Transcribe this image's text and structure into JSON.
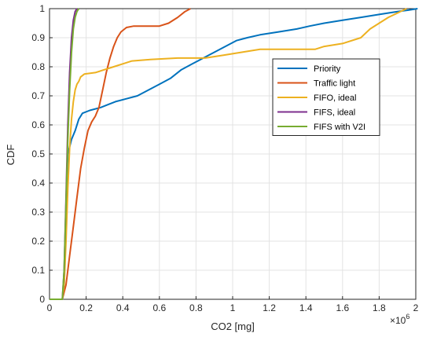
{
  "chart_data": {
    "type": "line",
    "title": "",
    "xlabel": "CO2 [mg]",
    "ylabel": "CDF",
    "x_multiplier_label": "×10",
    "x_multiplier_exponent": "6",
    "xlim": [
      0,
      2000000
    ],
    "ylim": [
      0,
      1
    ],
    "x_ticks": [
      0,
      200000,
      400000,
      600000,
      800000,
      1000000,
      1200000,
      1400000,
      1600000,
      1800000,
      2000000
    ],
    "x_tick_labels": [
      "0",
      "0.2",
      "0.4",
      "0.6",
      "0.8",
      "1",
      "1.2",
      "1.4",
      "1.6",
      "1.8",
      "2"
    ],
    "y_ticks": [
      0,
      0.1,
      0.2,
      0.3,
      0.4,
      0.5,
      0.6,
      0.7,
      0.8,
      0.9,
      1
    ],
    "y_tick_labels": [
      "0",
      "0.1",
      "0.2",
      "0.3",
      "0.4",
      "0.5",
      "0.6",
      "0.7",
      "0.8",
      "0.9",
      "1"
    ],
    "grid": true,
    "legend_position": "right-middle",
    "series": [
      {
        "name": "Priority",
        "color": "#0072BD",
        "points": [
          [
            0,
            0
          ],
          [
            70000,
            0
          ],
          [
            80000,
            0.05
          ],
          [
            90000,
            0.3
          ],
          [
            100000,
            0.5
          ],
          [
            120000,
            0.55
          ],
          [
            140000,
            0.58
          ],
          [
            160000,
            0.62
          ],
          [
            180000,
            0.64
          ],
          [
            220000,
            0.65
          ],
          [
            280000,
            0.66
          ],
          [
            320000,
            0.67
          ],
          [
            360000,
            0.68
          ],
          [
            420000,
            0.69
          ],
          [
            480000,
            0.7
          ],
          [
            540000,
            0.72
          ],
          [
            600000,
            0.74
          ],
          [
            660000,
            0.76
          ],
          [
            720000,
            0.79
          ],
          [
            780000,
            0.81
          ],
          [
            840000,
            0.83
          ],
          [
            900000,
            0.85
          ],
          [
            960000,
            0.87
          ],
          [
            1020000,
            0.89
          ],
          [
            1080000,
            0.9
          ],
          [
            1150000,
            0.91
          ],
          [
            1250000,
            0.92
          ],
          [
            1350000,
            0.93
          ],
          [
            1420000,
            0.94
          ],
          [
            1500000,
            0.95
          ],
          [
            1600000,
            0.96
          ],
          [
            1700000,
            0.97
          ],
          [
            1800000,
            0.98
          ],
          [
            1900000,
            0.99
          ],
          [
            1960000,
            0.995
          ],
          [
            2010000,
            1.0
          ]
        ]
      },
      {
        "name": "Traffic light",
        "color": "#D95319",
        "points": [
          [
            0,
            0
          ],
          [
            70000,
            0
          ],
          [
            90000,
            0.05
          ],
          [
            110000,
            0.15
          ],
          [
            130000,
            0.25
          ],
          [
            150000,
            0.35
          ],
          [
            170000,
            0.45
          ],
          [
            190000,
            0.52
          ],
          [
            210000,
            0.58
          ],
          [
            230000,
            0.61
          ],
          [
            250000,
            0.63
          ],
          [
            270000,
            0.66
          ],
          [
            290000,
            0.72
          ],
          [
            310000,
            0.78
          ],
          [
            330000,
            0.83
          ],
          [
            350000,
            0.87
          ],
          [
            370000,
            0.9
          ],
          [
            390000,
            0.92
          ],
          [
            420000,
            0.935
          ],
          [
            460000,
            0.94
          ],
          [
            520000,
            0.94
          ],
          [
            600000,
            0.94
          ],
          [
            650000,
            0.95
          ],
          [
            700000,
            0.97
          ],
          [
            740000,
            0.99
          ],
          [
            770000,
            1.0
          ]
        ]
      },
      {
        "name": "FIFO, ideal",
        "color": "#EDB120",
        "points": [
          [
            0,
            0
          ],
          [
            70000,
            0
          ],
          [
            80000,
            0.05
          ],
          [
            90000,
            0.2
          ],
          [
            100000,
            0.38
          ],
          [
            110000,
            0.52
          ],
          [
            120000,
            0.62
          ],
          [
            130000,
            0.68
          ],
          [
            140000,
            0.72
          ],
          [
            150000,
            0.74
          ],
          [
            160000,
            0.75
          ],
          [
            170000,
            0.765
          ],
          [
            190000,
            0.775
          ],
          [
            250000,
            0.78
          ],
          [
            300000,
            0.79
          ],
          [
            350000,
            0.8
          ],
          [
            400000,
            0.81
          ],
          [
            450000,
            0.82
          ],
          [
            550000,
            0.825
          ],
          [
            700000,
            0.83
          ],
          [
            850000,
            0.83
          ],
          [
            950000,
            0.84
          ],
          [
            1050000,
            0.85
          ],
          [
            1150000,
            0.86
          ],
          [
            1250000,
            0.86
          ],
          [
            1450000,
            0.86
          ],
          [
            1500000,
            0.87
          ],
          [
            1600000,
            0.88
          ],
          [
            1700000,
            0.9
          ],
          [
            1750000,
            0.93
          ],
          [
            1850000,
            0.97
          ],
          [
            1950000,
            1.0
          ]
        ]
      },
      {
        "name": "FIFS, ideal",
        "color": "#7E2F8E",
        "points": [
          [
            0,
            0
          ],
          [
            70000,
            0
          ],
          [
            80000,
            0.1
          ],
          [
            90000,
            0.35
          ],
          [
            100000,
            0.6
          ],
          [
            110000,
            0.78
          ],
          [
            120000,
            0.9
          ],
          [
            130000,
            0.96
          ],
          [
            140000,
            0.99
          ],
          [
            150000,
            1.0
          ]
        ]
      },
      {
        "name": "FIFS with V2I",
        "color": "#77AC30",
        "points": [
          [
            0,
            0
          ],
          [
            70000,
            0
          ],
          [
            80000,
            0.1
          ],
          [
            90000,
            0.33
          ],
          [
            100000,
            0.55
          ],
          [
            110000,
            0.72
          ],
          [
            120000,
            0.85
          ],
          [
            130000,
            0.93
          ],
          [
            140000,
            0.97
          ],
          [
            150000,
            0.99
          ],
          [
            160000,
            1.0
          ]
        ]
      }
    ]
  }
}
